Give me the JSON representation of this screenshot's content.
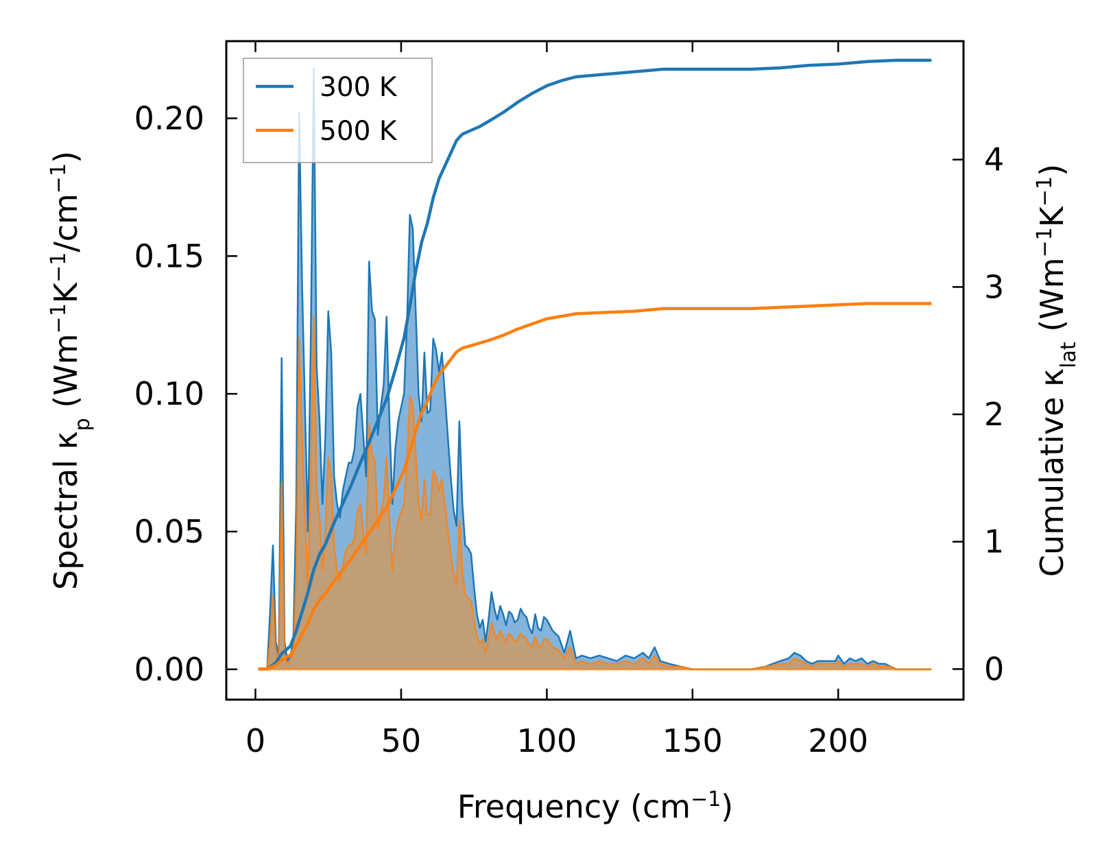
{
  "chart_data": {
    "type": "area",
    "xlabel": "Frequency (cm",
    "xlabel_sup": "−1",
    "xlabel_tail": ")",
    "ylabel_left": {
      "pre": "Spectral κ",
      "sub": "p",
      "mid": " (Wm",
      "sup1": "−1",
      "mid2": "K",
      "sup2": "−1",
      "mid3": "/cm",
      "sup3": "−1",
      "tail": ")"
    },
    "ylabel_right": {
      "pre": "Cumulative κ",
      "sub": "lat",
      "mid": " (Wm",
      "sup1": "−1",
      "mid2": "K",
      "sup2": "−1",
      "tail": ")"
    },
    "xlim": [
      -10,
      243
    ],
    "ylim_left": [
      -0.011,
      0.228
    ],
    "ylim_right": [
      -0.24,
      4.93
    ],
    "x_ticks": [
      0,
      50,
      100,
      150,
      200
    ],
    "y_left_ticks": [
      "0.00",
      "0.05",
      "0.10",
      "0.15",
      "0.20"
    ],
    "y_right_ticks": [
      0,
      1,
      2,
      3,
      4
    ],
    "legend": {
      "position": "upper-left",
      "entries": [
        "300 K",
        "500 K"
      ]
    },
    "colors": {
      "300K": "#1f77b4",
      "500K": "#ff7f0e",
      "fill_300K": "#5b9bd0",
      "fill_overlap": "#c69c6e"
    },
    "spectral_300K": [
      [
        1,
        0
      ],
      [
        4,
        0
      ],
      [
        5,
        0.02
      ],
      [
        6,
        0.045
      ],
      [
        7,
        0.01
      ],
      [
        8,
        0.005
      ],
      [
        9,
        0.113
      ],
      [
        10,
        0.01
      ],
      [
        11,
        0.003
      ],
      [
        12,
        0.005
      ],
      [
        13,
        0.01
      ],
      [
        14,
        0.06
      ],
      [
        15,
        0.202
      ],
      [
        16,
        0.14
      ],
      [
        17,
        0.095
      ],
      [
        18,
        0.05
      ],
      [
        19,
        0.12
      ],
      [
        20,
        0.218
      ],
      [
        21,
        0.11
      ],
      [
        22,
        0.09
      ],
      [
        23,
        0.06
      ],
      [
        24,
        0.085
      ],
      [
        25,
        0.13
      ],
      [
        26,
        0.115
      ],
      [
        27,
        0.07
      ],
      [
        28,
        0.06
      ],
      [
        29,
        0.055
      ],
      [
        30,
        0.065
      ],
      [
        31,
        0.07
      ],
      [
        32,
        0.075
      ],
      [
        33,
        0.075
      ],
      [
        34,
        0.08
      ],
      [
        35,
        0.095
      ],
      [
        36,
        0.1
      ],
      [
        37,
        0.085
      ],
      [
        38,
        0.07
      ],
      [
        39,
        0.148
      ],
      [
        40,
        0.13
      ],
      [
        41,
        0.127
      ],
      [
        42,
        0.085
      ],
      [
        43,
        0.095
      ],
      [
        44,
        0.103
      ],
      [
        45,
        0.128
      ],
      [
        46,
        0.09
      ],
      [
        47,
        0.06
      ],
      [
        48,
        0.08
      ],
      [
        49,
        0.09
      ],
      [
        50,
        0.095
      ],
      [
        51,
        0.1
      ],
      [
        52,
        0.125
      ],
      [
        53,
        0.165
      ],
      [
        54,
        0.16
      ],
      [
        55,
        0.13
      ],
      [
        56,
        0.1
      ],
      [
        57,
        0.09
      ],
      [
        58,
        0.115
      ],
      [
        59,
        0.093
      ],
      [
        60,
        0.094
      ],
      [
        61,
        0.12
      ],
      [
        62,
        0.116
      ],
      [
        63,
        0.108
      ],
      [
        64,
        0.115
      ],
      [
        65,
        0.1
      ],
      [
        66,
        0.085
      ],
      [
        67,
        0.07
      ],
      [
        68,
        0.058
      ],
      [
        69,
        0.052
      ],
      [
        70,
        0.09
      ],
      [
        71,
        0.06
      ],
      [
        72,
        0.045
      ],
      [
        73,
        0.044
      ],
      [
        74,
        0.042
      ],
      [
        75,
        0.03
      ],
      [
        76,
        0.02
      ],
      [
        77,
        0.015
      ],
      [
        78,
        0.018
      ],
      [
        79,
        0.01
      ],
      [
        80,
        0.018
      ],
      [
        81,
        0.028
      ],
      [
        82,
        0.022
      ],
      [
        83,
        0.018
      ],
      [
        84,
        0.023
      ],
      [
        85,
        0.02
      ],
      [
        86,
        0.016
      ],
      [
        87,
        0.021
      ],
      [
        88,
        0.02
      ],
      [
        89,
        0.017
      ],
      [
        90,
        0.018
      ],
      [
        91,
        0.022
      ],
      [
        92,
        0.02
      ],
      [
        93,
        0.019
      ],
      [
        94,
        0.015
      ],
      [
        95,
        0.013
      ],
      [
        96,
        0.02
      ],
      [
        97,
        0.015
      ],
      [
        98,
        0.014
      ],
      [
        99,
        0.019
      ],
      [
        100,
        0.018
      ],
      [
        102,
        0.014
      ],
      [
        104,
        0.012
      ],
      [
        106,
        0.006
      ],
      [
        108,
        0.014
      ],
      [
        110,
        0.004
      ],
      [
        112,
        0.005
      ],
      [
        115,
        0.004
      ],
      [
        118,
        0.005
      ],
      [
        121,
        0.004
      ],
      [
        124,
        0.003
      ],
      [
        127,
        0.005
      ],
      [
        130,
        0.004
      ],
      [
        133,
        0.006
      ],
      [
        135,
        0.004
      ],
      [
        137,
        0.008
      ],
      [
        139,
        0.003
      ],
      [
        142,
        0.002
      ],
      [
        146,
        0.001
      ],
      [
        150,
        0
      ],
      [
        160,
        0
      ],
      [
        170,
        0
      ],
      [
        175,
        0.001
      ],
      [
        180,
        0.003
      ],
      [
        183,
        0.004
      ],
      [
        185,
        0.006
      ],
      [
        187,
        0.005
      ],
      [
        189,
        0.003
      ],
      [
        191,
        0.002
      ],
      [
        193,
        0.003
      ],
      [
        196,
        0.003
      ],
      [
        199,
        0.003
      ],
      [
        200,
        0.005
      ],
      [
        202,
        0.002
      ],
      [
        204,
        0.004
      ],
      [
        206,
        0.003
      ],
      [
        208,
        0.004
      ],
      [
        210,
        0.002
      ],
      [
        212,
        0.003
      ],
      [
        214,
        0.002
      ],
      [
        216,
        0.002
      ],
      [
        218,
        0.001
      ],
      [
        220,
        0
      ],
      [
        232,
        0
      ]
    ],
    "spectral_500K": [
      [
        1,
        0
      ],
      [
        4,
        0
      ],
      [
        5,
        0.01
      ],
      [
        6,
        0.027
      ],
      [
        7,
        0.005
      ],
      [
        8,
        0.003
      ],
      [
        9,
        0.068
      ],
      [
        10,
        0.005
      ],
      [
        11,
        0.002
      ],
      [
        12,
        0.003
      ],
      [
        13,
        0.006
      ],
      [
        14,
        0.035
      ],
      [
        15,
        0.12
      ],
      [
        16,
        0.085
      ],
      [
        17,
        0.055
      ],
      [
        18,
        0.03
      ],
      [
        19,
        0.07
      ],
      [
        20,
        0.128
      ],
      [
        21,
        0.065
      ],
      [
        22,
        0.055
      ],
      [
        23,
        0.036
      ],
      [
        24,
        0.05
      ],
      [
        25,
        0.077
      ],
      [
        26,
        0.07
      ],
      [
        27,
        0.045
      ],
      [
        28,
        0.036
      ],
      [
        29,
        0.032
      ],
      [
        30,
        0.038
      ],
      [
        31,
        0.043
      ],
      [
        32,
        0.045
      ],
      [
        33,
        0.045
      ],
      [
        34,
        0.048
      ],
      [
        35,
        0.057
      ],
      [
        36,
        0.06
      ],
      [
        37,
        0.05
      ],
      [
        38,
        0.042
      ],
      [
        39,
        0.089
      ],
      [
        40,
        0.078
      ],
      [
        41,
        0.076
      ],
      [
        42,
        0.051
      ],
      [
        43,
        0.057
      ],
      [
        44,
        0.062
      ],
      [
        45,
        0.077
      ],
      [
        46,
        0.054
      ],
      [
        47,
        0.036
      ],
      [
        48,
        0.048
      ],
      [
        49,
        0.054
      ],
      [
        50,
        0.057
      ],
      [
        51,
        0.06
      ],
      [
        52,
        0.075
      ],
      [
        53,
        0.099
      ],
      [
        54,
        0.096
      ],
      [
        55,
        0.078
      ],
      [
        56,
        0.06
      ],
      [
        57,
        0.054
      ],
      [
        58,
        0.069
      ],
      [
        59,
        0.056
      ],
      [
        60,
        0.056
      ],
      [
        61,
        0.072
      ],
      [
        62,
        0.07
      ],
      [
        63,
        0.065
      ],
      [
        64,
        0.069
      ],
      [
        65,
        0.06
      ],
      [
        66,
        0.051
      ],
      [
        67,
        0.042
      ],
      [
        68,
        0.035
      ],
      [
        69,
        0.031
      ],
      [
        70,
        0.054
      ],
      [
        71,
        0.036
      ],
      [
        72,
        0.027
      ],
      [
        73,
        0.026
      ],
      [
        74,
        0.025
      ],
      [
        75,
        0.018
      ],
      [
        76,
        0.012
      ],
      [
        77,
        0.009
      ],
      [
        78,
        0.011
      ],
      [
        79,
        0.006
      ],
      [
        80,
        0.011
      ],
      [
        81,
        0.017
      ],
      [
        82,
        0.013
      ],
      [
        83,
        0.011
      ],
      [
        84,
        0.014
      ],
      [
        85,
        0.012
      ],
      [
        86,
        0.01
      ],
      [
        87,
        0.013
      ],
      [
        88,
        0.012
      ],
      [
        89,
        0.01
      ],
      [
        90,
        0.011
      ],
      [
        91,
        0.013
      ],
      [
        92,
        0.012
      ],
      [
        93,
        0.011
      ],
      [
        94,
        0.009
      ],
      [
        95,
        0.008
      ],
      [
        96,
        0.012
      ],
      [
        97,
        0.009
      ],
      [
        98,
        0.008
      ],
      [
        99,
        0.011
      ],
      [
        100,
        0.011
      ],
      [
        102,
        0.008
      ],
      [
        104,
        0.007
      ],
      [
        106,
        0.004
      ],
      [
        108,
        0.008
      ],
      [
        110,
        0.002
      ],
      [
        112,
        0.003
      ],
      [
        115,
        0.002
      ],
      [
        118,
        0.003
      ],
      [
        121,
        0.002
      ],
      [
        124,
        0.002
      ],
      [
        127,
        0.003
      ],
      [
        130,
        0.002
      ],
      [
        133,
        0.004
      ],
      [
        135,
        0.002
      ],
      [
        137,
        0.005
      ],
      [
        139,
        0.002
      ],
      [
        142,
        0.001
      ],
      [
        146,
        0.001
      ],
      [
        150,
        0
      ],
      [
        160,
        0
      ],
      [
        170,
        0
      ],
      [
        175,
        0.001
      ],
      [
        180,
        0.002
      ],
      [
        183,
        0.002
      ],
      [
        185,
        0.004
      ],
      [
        187,
        0.003
      ],
      [
        189,
        0.002
      ],
      [
        191,
        0.001
      ],
      [
        193,
        0.002
      ],
      [
        196,
        0.002
      ],
      [
        199,
        0.002
      ],
      [
        200,
        0.003
      ],
      [
        202,
        0.001
      ],
      [
        204,
        0.002
      ],
      [
        206,
        0.002
      ],
      [
        208,
        0.002
      ],
      [
        210,
        0.001
      ],
      [
        212,
        0.002
      ],
      [
        214,
        0.001
      ],
      [
        216,
        0.001
      ],
      [
        218,
        0.001
      ],
      [
        220,
        0
      ],
      [
        232,
        0
      ]
    ],
    "cumulative_300K": [
      [
        1,
        0
      ],
      [
        4,
        0
      ],
      [
        7,
        0.05
      ],
      [
        9,
        0.12
      ],
      [
        12,
        0.18
      ],
      [
        14,
        0.3
      ],
      [
        16,
        0.45
      ],
      [
        18,
        0.6
      ],
      [
        20,
        0.78
      ],
      [
        22,
        0.9
      ],
      [
        24,
        0.98
      ],
      [
        27,
        1.15
      ],
      [
        30,
        1.3
      ],
      [
        33,
        1.45
      ],
      [
        36,
        1.62
      ],
      [
        39,
        1.78
      ],
      [
        42,
        1.95
      ],
      [
        45,
        2.12
      ],
      [
        48,
        2.35
      ],
      [
        51,
        2.6
      ],
      [
        53,
        2.85
      ],
      [
        55,
        3.12
      ],
      [
        57,
        3.35
      ],
      [
        59,
        3.5
      ],
      [
        61,
        3.7
      ],
      [
        63,
        3.85
      ],
      [
        65,
        3.95
      ],
      [
        67,
        4.05
      ],
      [
        69,
        4.15
      ],
      [
        71,
        4.2
      ],
      [
        74,
        4.23
      ],
      [
        77,
        4.26
      ],
      [
        80,
        4.3
      ],
      [
        85,
        4.37
      ],
      [
        90,
        4.45
      ],
      [
        95,
        4.52
      ],
      [
        100,
        4.58
      ],
      [
        105,
        4.62
      ],
      [
        110,
        4.65
      ],
      [
        120,
        4.67
      ],
      [
        130,
        4.69
      ],
      [
        140,
        4.71
      ],
      [
        150,
        4.71
      ],
      [
        170,
        4.71
      ],
      [
        180,
        4.72
      ],
      [
        190,
        4.74
      ],
      [
        200,
        4.75
      ],
      [
        210,
        4.77
      ],
      [
        220,
        4.78
      ],
      [
        232,
        4.78
      ]
    ],
    "cumulative_500K": [
      [
        1,
        0
      ],
      [
        4,
        0
      ],
      [
        7,
        0.03
      ],
      [
        9,
        0.07
      ],
      [
        12,
        0.11
      ],
      [
        14,
        0.18
      ],
      [
        16,
        0.27
      ],
      [
        18,
        0.36
      ],
      [
        20,
        0.47
      ],
      [
        22,
        0.54
      ],
      [
        24,
        0.59
      ],
      [
        27,
        0.69
      ],
      [
        30,
        0.78
      ],
      [
        33,
        0.87
      ],
      [
        36,
        0.97
      ],
      [
        39,
        1.07
      ],
      [
        42,
        1.17
      ],
      [
        45,
        1.27
      ],
      [
        48,
        1.41
      ],
      [
        51,
        1.56
      ],
      [
        53,
        1.71
      ],
      [
        55,
        1.87
      ],
      [
        57,
        2.01
      ],
      [
        59,
        2.1
      ],
      [
        61,
        2.22
      ],
      [
        63,
        2.31
      ],
      [
        65,
        2.37
      ],
      [
        67,
        2.43
      ],
      [
        69,
        2.49
      ],
      [
        71,
        2.52
      ],
      [
        74,
        2.54
      ],
      [
        77,
        2.56
      ],
      [
        80,
        2.58
      ],
      [
        85,
        2.62
      ],
      [
        90,
        2.67
      ],
      [
        95,
        2.71
      ],
      [
        100,
        2.75
      ],
      [
        105,
        2.77
      ],
      [
        110,
        2.79
      ],
      [
        120,
        2.8
      ],
      [
        130,
        2.81
      ],
      [
        140,
        2.83
      ],
      [
        150,
        2.83
      ],
      [
        170,
        2.83
      ],
      [
        180,
        2.84
      ],
      [
        190,
        2.85
      ],
      [
        200,
        2.86
      ],
      [
        210,
        2.87
      ],
      [
        220,
        2.87
      ],
      [
        232,
        2.87
      ]
    ]
  }
}
